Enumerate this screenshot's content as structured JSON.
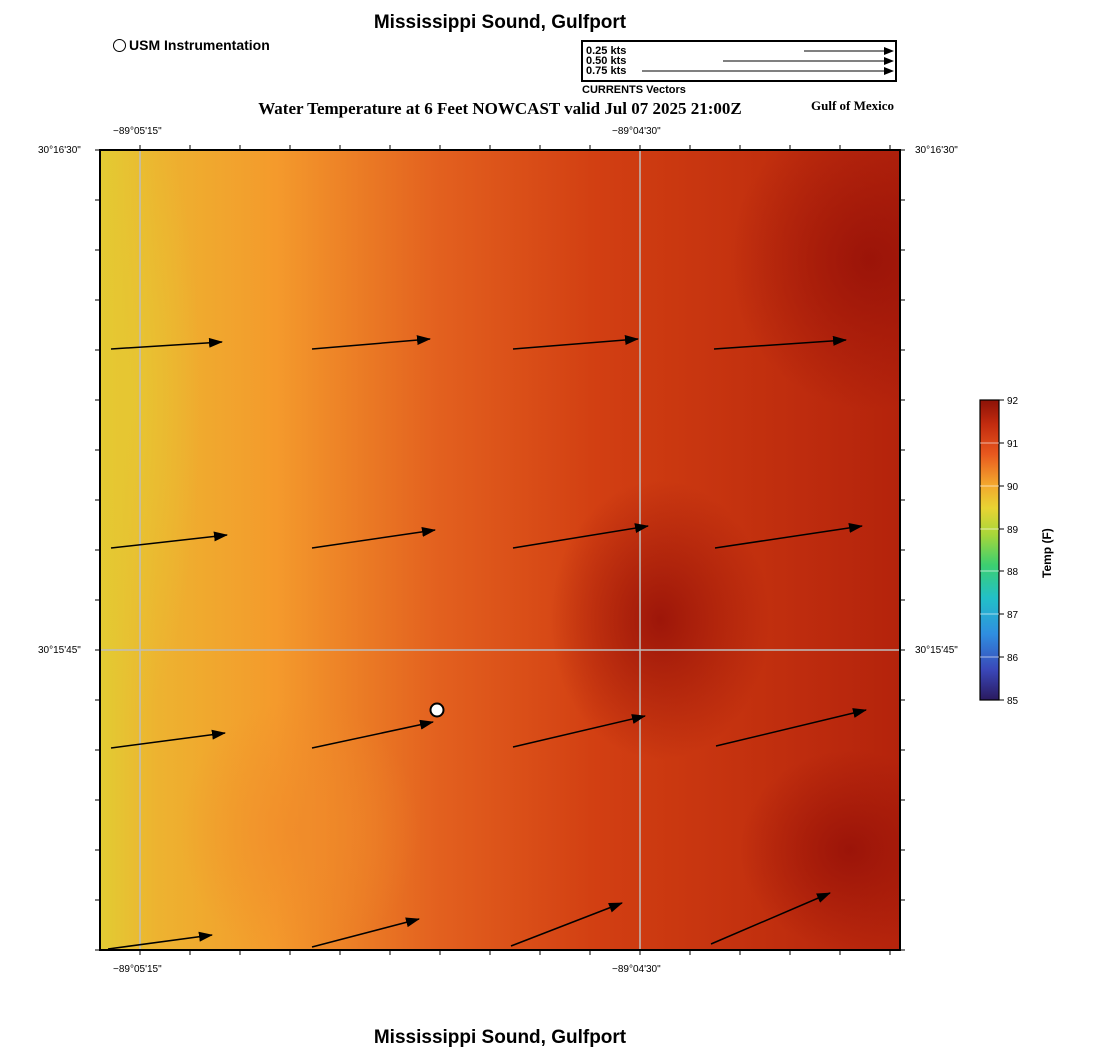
{
  "page": {
    "title_top": "Mississippi Sound, Gulfport",
    "title_bottom": "Mississippi Sound, Gulfport",
    "subtitle": "Water Temperature at 6 Feet NOWCAST valid Jul 07 2025 21:00Z",
    "region_label": "Gulf of Mexico"
  },
  "legend": {
    "station_label": "USM Instrumentation",
    "vectors_caption": "CURRENTS Vectors",
    "vector_scale": [
      {
        "label": "0.25 kts",
        "speed": 0.25
      },
      {
        "label": "0.50 kts",
        "speed": 0.5
      },
      {
        "label": "0.75 kts",
        "speed": 0.75
      }
    ]
  },
  "axes": {
    "lon_left": "−89°05'15\"",
    "lon_right": "−89°04'30\"",
    "lat_top": "30°16'30\"",
    "lat_mid": "30°15'45\""
  },
  "colorbar": {
    "title": "Temp (F)",
    "min": 85,
    "max": 92,
    "ticks": [
      "85",
      "86",
      "87",
      "88",
      "89",
      "90",
      "91",
      "92"
    ]
  },
  "colors": {
    "frame": "#000000",
    "graticule": "#bdbdbd",
    "station_fill": "#ffffff"
  }
}
